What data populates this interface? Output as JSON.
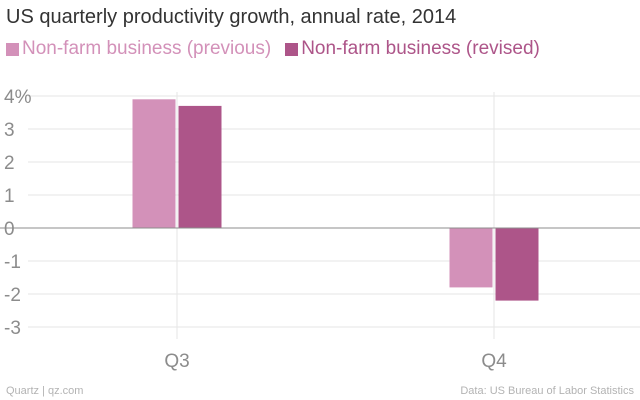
{
  "chart_data": {
    "type": "bar",
    "title": "US quarterly productivity growth, annual rate, 2014",
    "categories": [
      "Q3",
      "Q4"
    ],
    "series": [
      {
        "name": "Non-farm business (previous)",
        "values": [
          3.9,
          -1.8
        ],
        "color": "#d391b9"
      },
      {
        "name": "Non-farm business (revised)",
        "values": [
          3.7,
          -2.2
        ],
        "color": "#ad5589"
      }
    ],
    "ylim": [
      -3,
      4
    ],
    "yticks": [
      "4%",
      "3",
      "2",
      "1",
      "0",
      "-1",
      "-2",
      "-3"
    ],
    "ytick_values": [
      4,
      3,
      2,
      1,
      0,
      -1,
      -2,
      -3
    ],
    "xlabel": "",
    "ylabel": ""
  },
  "footer": {
    "source_left": "Quartz | qz.com",
    "source_right": "Data: US Bureau of Labor Statistics"
  }
}
